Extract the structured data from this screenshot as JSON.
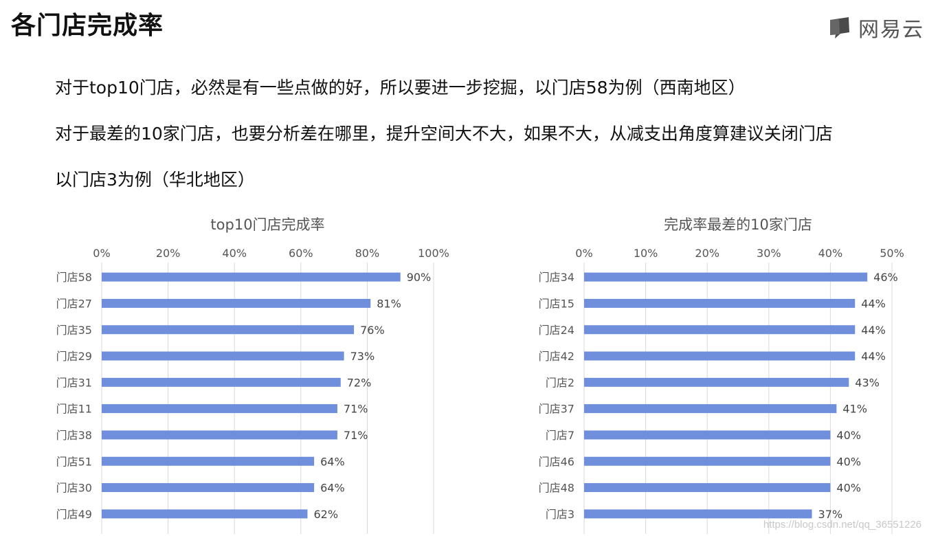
{
  "header": {
    "title": "各门店完成率",
    "brand": "网易云"
  },
  "text_lines": [
    "对于top10门店，必然是有一些点做的好，所以要进一步挖掘，以门店58为例（西南地区）",
    "对于最差的10家门店，也要分析差在哪里，提升空间大不大，如果不大，从减支出角度算建议关闭门店",
    "以门店3为例（华北地区）"
  ],
  "watermark": "https://blog.csdn.net/qq_36551226",
  "colors": {
    "bar": "#6f8fdc",
    "grid": "#d9d9d9"
  },
  "chart_data": [
    {
      "type": "bar",
      "orientation": "horizontal",
      "title": "top10门店完成率",
      "categories": [
        "门店58",
        "门店27",
        "门店35",
        "门店29",
        "门店31",
        "门店11",
        "门店38",
        "门店51",
        "门店30",
        "门店49"
      ],
      "values": [
        90,
        81,
        76,
        73,
        72,
        71,
        71,
        64,
        64,
        62
      ],
      "data_labels": [
        "90%",
        "81%",
        "76%",
        "73%",
        "72%",
        "71%",
        "71%",
        "64%",
        "64%",
        "62%"
      ],
      "ticks": [
        "0%",
        "20%",
        "40%",
        "60%",
        "80%",
        "100%"
      ],
      "xlim": [
        0,
        100
      ],
      "axis_position": "top",
      "grid": true,
      "unit": "%"
    },
    {
      "type": "bar",
      "orientation": "horizontal",
      "title": "完成率最差的10家门店",
      "categories": [
        "门店34",
        "门店15",
        "门店24",
        "门店42",
        "门店2",
        "门店37",
        "门店7",
        "门店46",
        "门店48",
        "门店3"
      ],
      "values": [
        46,
        44,
        44,
        44,
        43,
        41,
        40,
        40,
        40,
        37
      ],
      "data_labels": [
        "46%",
        "44%",
        "44%",
        "44%",
        "43%",
        "41%",
        "40%",
        "40%",
        "40%",
        "37%"
      ],
      "ticks": [
        "0%",
        "10%",
        "20%",
        "30%",
        "40%",
        "50%"
      ],
      "xlim": [
        0,
        50
      ],
      "axis_position": "top",
      "grid": true,
      "unit": "%"
    }
  ]
}
